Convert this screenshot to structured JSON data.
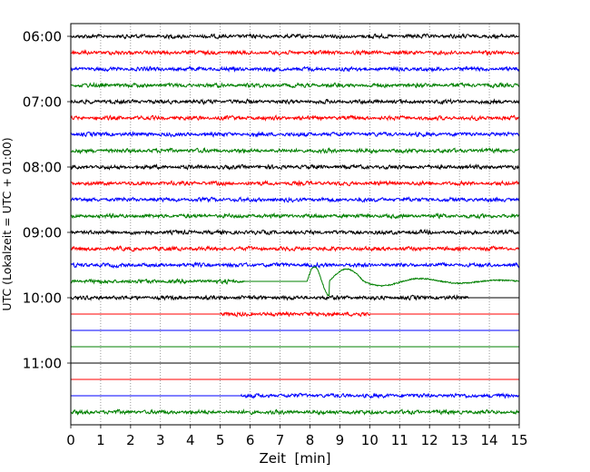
{
  "chart_data": {
    "type": "line",
    "title": "",
    "xlabel": "Zeit  [min]",
    "ylabel": "UTC (Lokalzeit = UTC + 01:00)",
    "xlim": [
      0,
      15
    ],
    "x_ticks": [
      "0",
      "1",
      "2",
      "3",
      "4",
      "5",
      "6",
      "7",
      "8",
      "9",
      "10",
      "11",
      "12",
      "13",
      "14",
      "15"
    ],
    "y_ticks": [
      "06:00",
      "07:00",
      "08:00",
      "09:00",
      "10:00",
      "11:00"
    ],
    "grid": "vertical dotted",
    "trace_interval": "15 min",
    "trace_colors": [
      "#000000",
      "#ff0000",
      "#0000ff",
      "#008000"
    ],
    "traces": [
      {
        "time": "06:00",
        "color": "#000000",
        "signal": "noise",
        "start_min": 0,
        "end_min": 15
      },
      {
        "time": "06:15",
        "color": "#ff0000",
        "signal": "noise",
        "start_min": 0,
        "end_min": 15
      },
      {
        "time": "06:30",
        "color": "#0000ff",
        "signal": "noise",
        "start_min": 0,
        "end_min": 15
      },
      {
        "time": "06:45",
        "color": "#008000",
        "signal": "noise",
        "start_min": 0,
        "end_min": 15
      },
      {
        "time": "07:00",
        "color": "#000000",
        "signal": "noise",
        "start_min": 0,
        "end_min": 15
      },
      {
        "time": "07:15",
        "color": "#ff0000",
        "signal": "noise",
        "start_min": 0,
        "end_min": 15
      },
      {
        "time": "07:30",
        "color": "#0000ff",
        "signal": "noise",
        "start_min": 0,
        "end_min": 15
      },
      {
        "time": "07:45",
        "color": "#008000",
        "signal": "noise",
        "start_min": 0,
        "end_min": 15
      },
      {
        "time": "08:00",
        "color": "#000000",
        "signal": "noise",
        "start_min": 0,
        "end_min": 15
      },
      {
        "time": "08:15",
        "color": "#ff0000",
        "signal": "noise",
        "start_min": 0,
        "end_min": 15
      },
      {
        "time": "08:30",
        "color": "#0000ff",
        "signal": "noise",
        "start_min": 0,
        "end_min": 15
      },
      {
        "time": "08:45",
        "color": "#008000",
        "signal": "noise",
        "start_min": 0,
        "end_min": 15
      },
      {
        "time": "09:00",
        "color": "#000000",
        "signal": "noise",
        "start_min": 0,
        "end_min": 15
      },
      {
        "time": "09:15",
        "color": "#ff0000",
        "signal": "noise",
        "start_min": 0,
        "end_min": 15
      },
      {
        "time": "09:30",
        "color": "#0000ff",
        "signal": "noise",
        "start_min": 0,
        "end_min": 15
      },
      {
        "time": "09:45",
        "color": "#008000",
        "signal": "noise_then_event",
        "noise_end_min": 5.8,
        "event_start_min": 7.9,
        "end_min": 15
      },
      {
        "time": "10:00",
        "color": "#000000",
        "signal": "noise_then_flat",
        "noise_end_min": 13.3,
        "end_min": 15
      },
      {
        "time": "10:15",
        "color": "#ff0000",
        "signal": "noise_segment",
        "noise_start_min": 5.0,
        "noise_end_min": 10.0,
        "end_min": 15
      },
      {
        "time": "10:30",
        "color": "#0000ff",
        "signal": "flat",
        "start_min": 0,
        "end_min": 15
      },
      {
        "time": "10:45",
        "color": "#008000",
        "signal": "flat",
        "start_min": 0,
        "end_min": 15
      },
      {
        "time": "11:00",
        "color": "#000000",
        "signal": "flat",
        "start_min": 0,
        "end_min": 15
      },
      {
        "time": "11:15",
        "color": "#ff0000",
        "signal": "flat",
        "start_min": 0,
        "end_min": 15
      },
      {
        "time": "11:30",
        "color": "#0000ff",
        "signal": "flat_then_noise",
        "noise_start_min": 5.7,
        "end_min": 15
      },
      {
        "time": "11:45",
        "color": "#008000",
        "signal": "noise",
        "start_min": 0,
        "end_min": 15
      }
    ]
  }
}
